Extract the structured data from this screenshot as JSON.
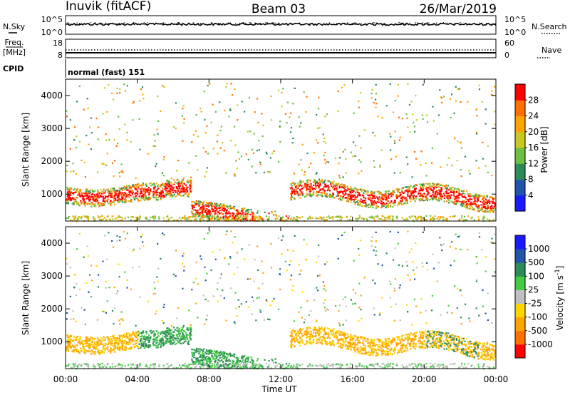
{
  "header": {
    "station": "Inuvik (fitACF)",
    "beam": "Beam 03",
    "date": "26/Mar/2019"
  },
  "side_labels": {
    "n_sky": "N.Sky",
    "n_search": "N.Search",
    "freq_top": "Freq.",
    "freq_unit": "[MHz]",
    "nave": "Nave",
    "cpid": "CPID"
  },
  "cpid_text": "normal (fast) 151",
  "noise_panel": {
    "left_ticks": [
      "10^5",
      "10^0"
    ],
    "right_ticks": [
      "10^5",
      "10^0"
    ]
  },
  "freq_panel": {
    "left_ticks": [
      "18",
      "8"
    ],
    "right_ticks": [
      "60",
      "0"
    ]
  },
  "chart_data": [
    {
      "type": "heatmap",
      "name": "power",
      "ylabel": "Slant Range [km]",
      "xlim": [
        0,
        24
      ],
      "ylim": [
        180,
        4500
      ],
      "y_ticks": [
        "1000",
        "2000",
        "3000",
        "4000"
      ],
      "colorbar": {
        "label": "Power [dB]",
        "ticks": [
          "4",
          "8",
          "12",
          "16",
          "20",
          "24",
          "28"
        ],
        "colors": [
          "#1a1aff",
          "#2255aa",
          "#2e8b57",
          "#6cbf40",
          "#c8c820",
          "#ffa500",
          "#ff7000",
          "#ff0000"
        ]
      }
    },
    {
      "type": "heatmap",
      "name": "velocity",
      "ylabel": "Slant Range [km]",
      "xlim": [
        0,
        24
      ],
      "ylim": [
        180,
        4500
      ],
      "y_ticks": [
        "1000",
        "2000",
        "3000",
        "4000"
      ],
      "colorbar": {
        "label": "Velocity [m s",
        "label_sup": "-1",
        "label_end": "]",
        "ticks": [
          "1000",
          "500",
          "100",
          "25",
          "-25",
          "-100",
          "-500",
          "-1000"
        ],
        "colors": [
          "#1a1aff",
          "#2255aa",
          "#2e8b57",
          "#44cc44",
          "#c0c0c0",
          "#ffd700",
          "#ffa500",
          "#ff7000",
          "#ff0000"
        ]
      }
    }
  ],
  "x_axis": {
    "ticks": [
      "00:00",
      "04:00",
      "08:00",
      "12:00",
      "16:00",
      "20:00",
      "00:00"
    ],
    "label": "Time UT"
  }
}
